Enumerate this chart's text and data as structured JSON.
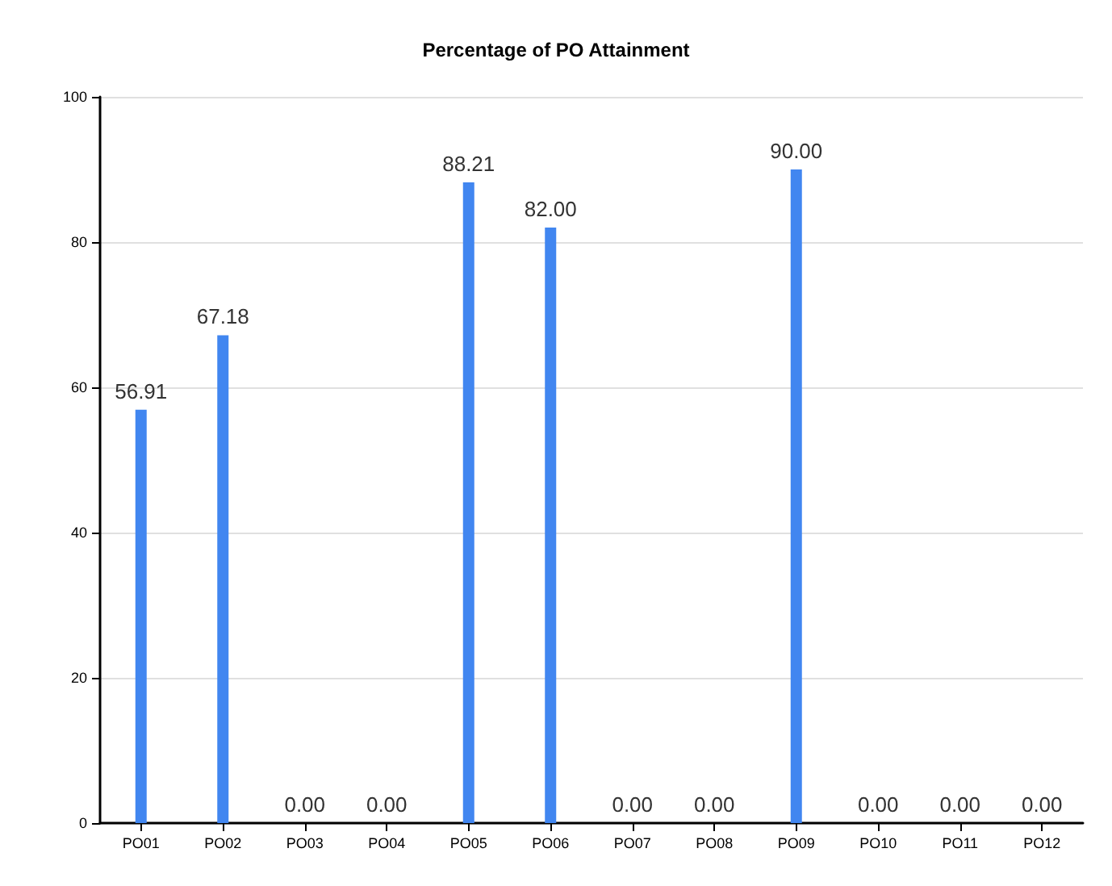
{
  "chart_data": {
    "type": "bar",
    "title": "Percentage of PO Attainment",
    "categories": [
      "PO01",
      "PO02",
      "PO03",
      "PO04",
      "PO05",
      "PO06",
      "PO07",
      "PO08",
      "PO09",
      "PO10",
      "PO11",
      "PO12"
    ],
    "values": [
      56.91,
      67.18,
      0,
      0,
      88.21,
      82,
      0,
      0,
      90,
      0,
      0,
      0
    ],
    "value_labels": [
      "56.91",
      "67.18",
      "0.00",
      "0.00",
      "88.21",
      "82.00",
      "0.00",
      "0.00",
      "90.00",
      "0.00",
      "0.00",
      "0.00"
    ],
    "color": "#4186f0",
    "ylim": [
      0,
      100
    ],
    "yticks": [
      0,
      20,
      40,
      60,
      80,
      100
    ],
    "grid": "y"
  }
}
